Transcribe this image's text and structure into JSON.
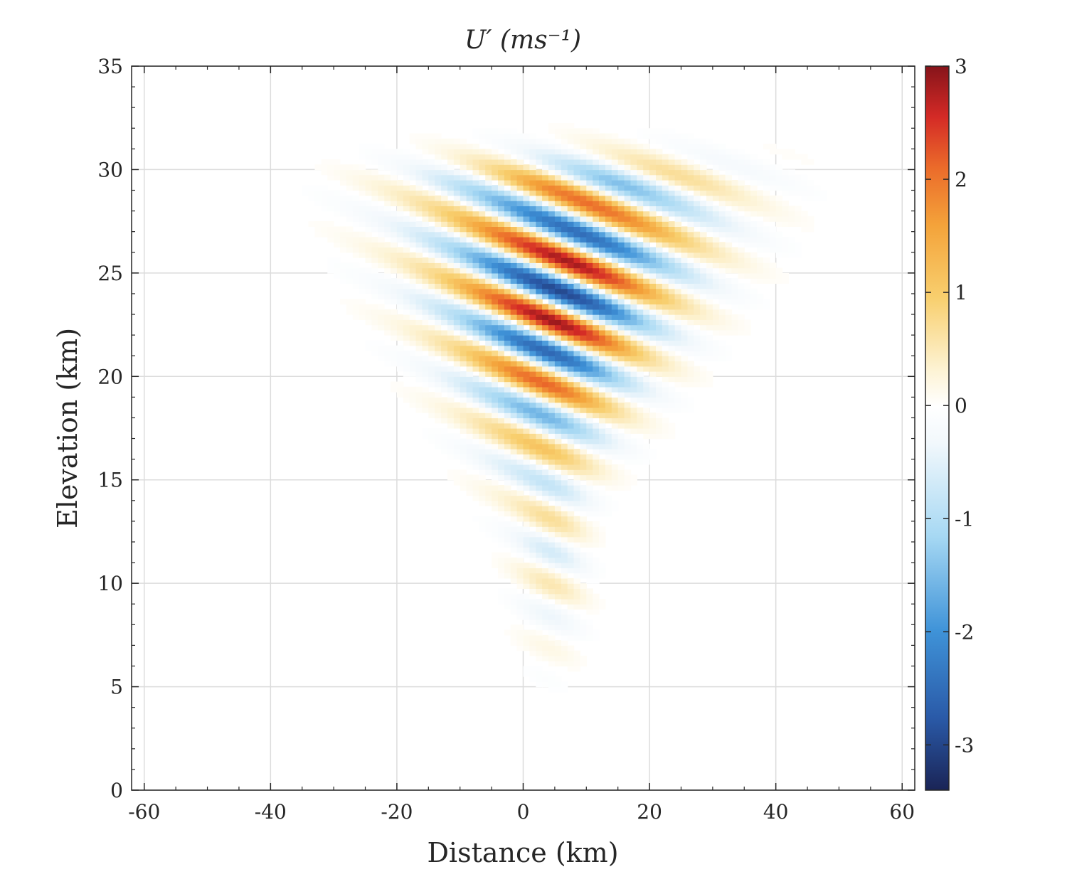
{
  "chart_data": {
    "type": "contour",
    "title": "U′  (ms⁻¹)",
    "xlabel": "Distance (km)",
    "ylabel": "Elevation (km)",
    "xlim": [
      -62,
      62
    ],
    "ylim": [
      0,
      35
    ],
    "xticks": [
      -60,
      -40,
      -20,
      0,
      20,
      40,
      60
    ],
    "yticks": [
      0,
      5,
      10,
      15,
      20,
      25,
      30,
      35
    ],
    "grid": true,
    "colorbar": {
      "range": [
        -3.4,
        3
      ],
      "ticks": [
        3,
        2,
        1,
        0,
        -1,
        -2,
        -3
      ],
      "colormap": "blue-white-red"
    },
    "wave_packet": {
      "description_values": "phase lines tilted, amplitude max near 25 km",
      "center_x_km": 7,
      "center_z_km": 24,
      "vertical_wavelength_km": 3.2,
      "peak_amplitude": 3.0
    }
  },
  "colors": {
    "negative_max": "#1a2f6b",
    "negative_mid": "#3a8fd6",
    "negative_low": "#bfe3f7",
    "zero": "#ffffff",
    "positive_low": "#fbe6a6",
    "positive_mid": "#f6a532",
    "positive_max": "#9e1a1a",
    "contour_line": "#111111",
    "grid": "#dddddd",
    "axis": "#262626"
  }
}
